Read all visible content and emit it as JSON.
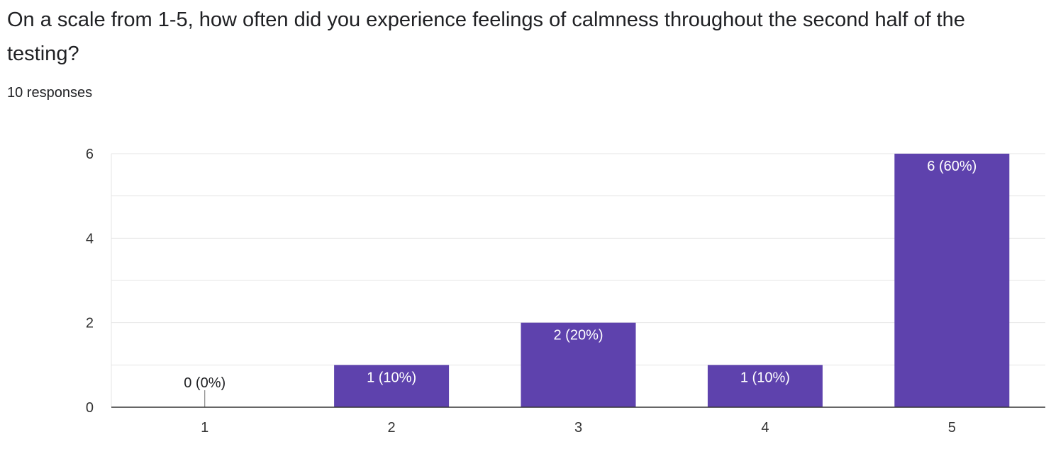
{
  "form": {
    "question": "On a scale from 1-5, how often did you experience feelings of calmness throughout the second half of the testing?",
    "responses": "10 responses"
  },
  "colors": {
    "bar": "#5e42ad",
    "grid": "#e5e5e5",
    "axis": "#333333",
    "text": "#202124"
  },
  "chart_data": {
    "type": "bar",
    "categories": [
      "1",
      "2",
      "3",
      "4",
      "5"
    ],
    "values": [
      0,
      1,
      2,
      1,
      6
    ],
    "data_labels": [
      "0 (0%)",
      "1 (10%)",
      "2 (20%)",
      "1 (10%)",
      "6 (60%)"
    ],
    "ylim": [
      0,
      6
    ],
    "yticks": [
      0,
      2,
      4,
      6
    ],
    "minor_grid_step": 1,
    "grid": true,
    "legend": "none"
  }
}
